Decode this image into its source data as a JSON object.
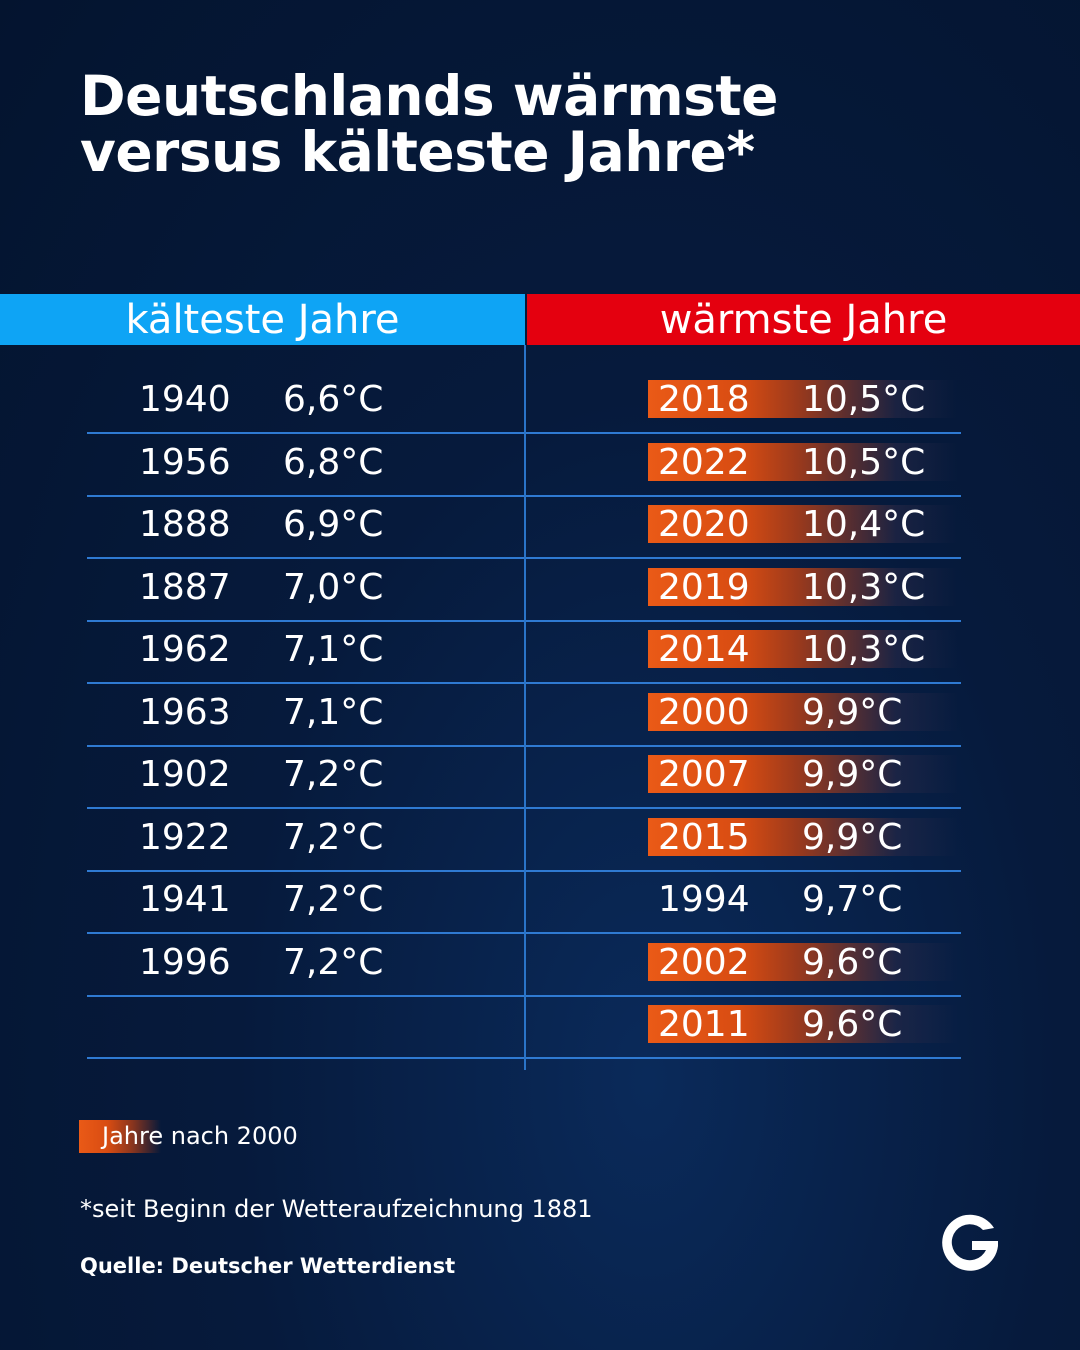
{
  "title": {
    "line1": "Deutschlands wärmste",
    "line2": "versus kälteste Jahre*"
  },
  "chart_data": {
    "type": "table",
    "columns": [
      {
        "header": "kälteste Jahre",
        "color": "#0ea4f5",
        "rows": [
          {
            "year": "1940",
            "temp": "6,6°C",
            "highlight": false
          },
          {
            "year": "1956",
            "temp": "6,8°C",
            "highlight": false
          },
          {
            "year": "1888",
            "temp": "6,9°C",
            "highlight": false
          },
          {
            "year": "1887",
            "temp": "7,0°C",
            "highlight": false
          },
          {
            "year": "1962",
            "temp": "7,1°C",
            "highlight": false
          },
          {
            "year": "1963",
            "temp": "7,1°C",
            "highlight": false
          },
          {
            "year": "1902",
            "temp": "7,2°C",
            "highlight": false
          },
          {
            "year": "1922",
            "temp": "7,2°C",
            "highlight": false
          },
          {
            "year": "1941",
            "temp": "7,2°C",
            "highlight": false
          },
          {
            "year": "1996",
            "temp": "7,2°C",
            "highlight": false
          }
        ]
      },
      {
        "header": "wärmste Jahre",
        "color": "#e4000f",
        "rows": [
          {
            "year": "2018",
            "temp": "10,5°C",
            "highlight": true
          },
          {
            "year": "2022",
            "temp": "10,5°C",
            "highlight": true
          },
          {
            "year": "2020",
            "temp": "10,4°C",
            "highlight": true
          },
          {
            "year": "2019",
            "temp": "10,3°C",
            "highlight": true
          },
          {
            "year": "2014",
            "temp": "10,3°C",
            "highlight": true
          },
          {
            "year": "2000",
            "temp": "9,9°C",
            "highlight": true
          },
          {
            "year": "2007",
            "temp": "9,9°C",
            "highlight": true
          },
          {
            "year": "2015",
            "temp": "9,9°C",
            "highlight": true
          },
          {
            "year": "1994",
            "temp": "9,7°C",
            "highlight": false
          },
          {
            "year": "2002",
            "temp": "9,6°C",
            "highlight": true
          },
          {
            "year": "2011",
            "temp": "9,6°C",
            "highlight": true
          }
        ]
      }
    ],
    "highlight_color": "#ea5a17"
  },
  "legend": {
    "label": "Jahre nach 2000"
  },
  "footnote": "*seit Beginn der Wetteraufzeichnung 1881",
  "source": "Quelle: Deutscher Wetterdienst",
  "logo": {
    "icon": "g-logo-icon",
    "color": "#ffffff"
  }
}
